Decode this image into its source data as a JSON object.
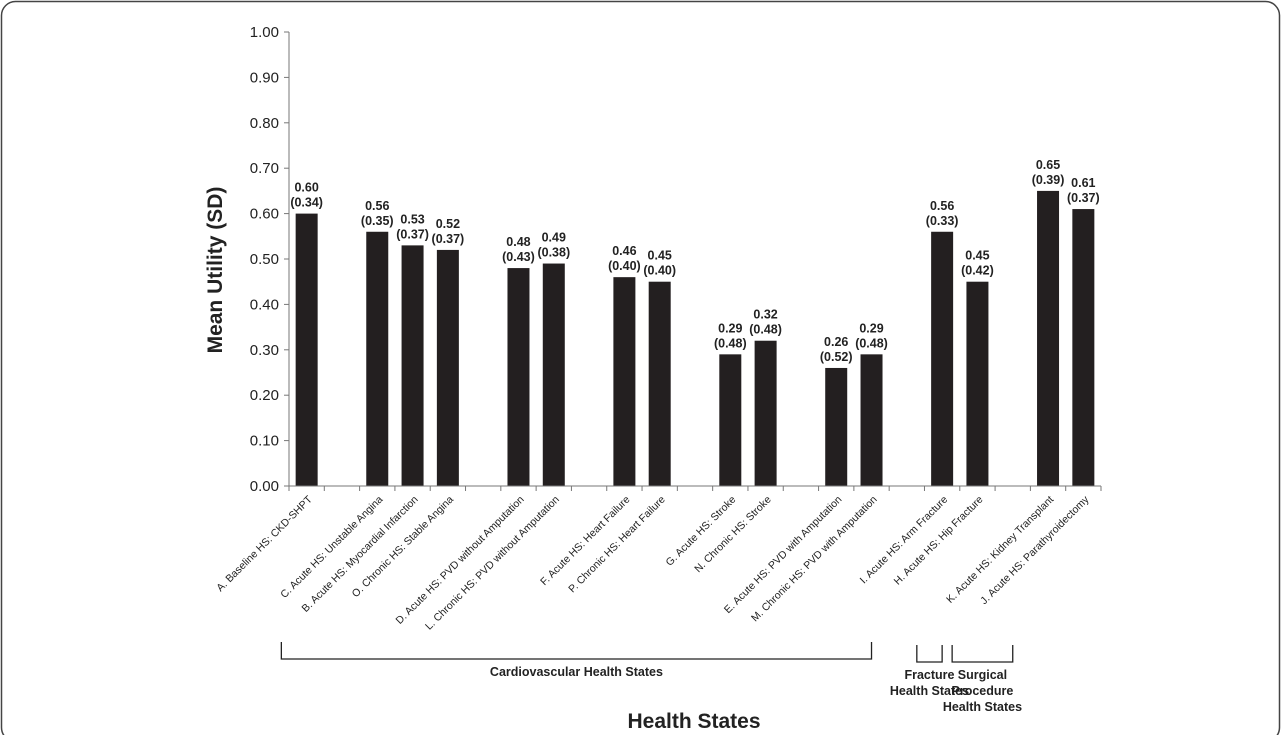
{
  "chart_data": {
    "type": "bar",
    "xlabel": "Health States",
    "ylabel": "Mean Utility (SD)",
    "ylim": [
      0,
      1
    ],
    "yticks": [
      "0.00",
      "0.10",
      "0.20",
      "0.30",
      "0.40",
      "0.50",
      "0.60",
      "0.70",
      "0.80",
      "0.90",
      "1.00"
    ],
    "grid": false,
    "bar_color": "#231f20",
    "categories": [
      "A. Baseline HS: CKD-SHPT",
      "",
      "C. Acute HS: Unstable Angina",
      "B. Acute HS: Myocardial Infarction",
      "O. Chronic HS: Stable Angina",
      "",
      "D. Acute HS: PVD without Amputation",
      "L. Chronic HS: PVD without Amputation",
      "",
      "F. Acute HS: Heart Failure",
      "P. Chronic HS: Heart Failure",
      "",
      "G. Acute HS: Stroke",
      "N. Chronic HS: Stroke",
      "",
      "E. Acute HS: PVD with Amputation",
      "M. Chronic HS: PVD with Amputation",
      "",
      "I. Acute HS: Arm Fracture",
      "H. Acute HS: Hip Fracture",
      "",
      "K. Acute HS: Kidney Transplant",
      "J. Acute HS: Parathyroidectomy"
    ],
    "values": [
      0.6,
      null,
      0.56,
      0.53,
      0.52,
      null,
      0.48,
      0.49,
      null,
      0.46,
      0.45,
      null,
      0.29,
      0.32,
      null,
      0.26,
      0.29,
      null,
      0.56,
      0.45,
      null,
      0.65,
      0.61
    ],
    "value_labels": [
      "0.60",
      "",
      "0.56",
      "0.53",
      "0.52",
      "",
      "0.48",
      "0.49",
      "",
      "0.46",
      "0.45",
      "",
      "0.29",
      "0.32",
      "",
      "0.26",
      "0.29",
      "",
      "0.56",
      "0.45",
      "",
      "0.65",
      "0.61"
    ],
    "sd_labels": [
      "(0.34)",
      "",
      "(0.35)",
      "(0.37)",
      "(0.37)",
      "",
      "(0.43)",
      "(0.38)",
      "",
      "(0.40)",
      "(0.40)",
      "",
      "(0.48)",
      "(0.48)",
      "",
      "(0.52)",
      "(0.48)",
      "",
      "(0.33)",
      "(0.42)",
      "",
      "(0.39)",
      "(0.37)"
    ],
    "groups": [
      {
        "lines": [
          "Cardiovascular Health States"
        ],
        "from": 0,
        "to": 16
      },
      {
        "lines": [
          "Fracture",
          "Health States"
        ],
        "from": 18,
        "to": 18
      },
      {
        "lines": [
          "Surgical",
          "Procedure",
          "Health States"
        ],
        "from": 19,
        "to": 20
      }
    ]
  }
}
